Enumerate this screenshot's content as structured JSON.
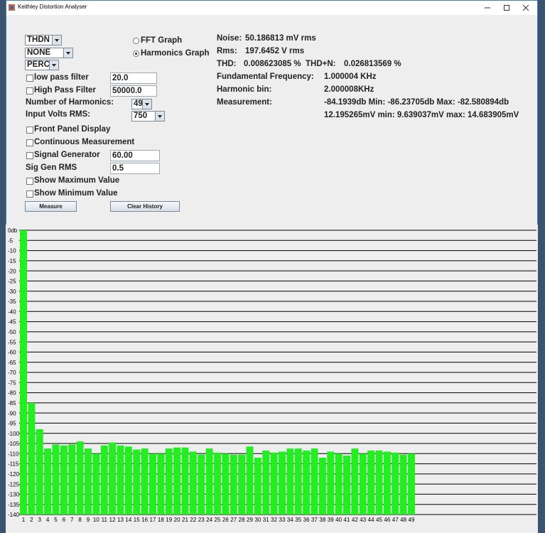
{
  "window": {
    "title": "Keithley Distortion Analyser"
  },
  "controls": {
    "mode": "THDN",
    "filter": "NONE",
    "units": "PERC",
    "low_pass_filter": {
      "label": "low pass filter",
      "value": "20.0"
    },
    "high_pass_filter": {
      "label": "High Pass Filter",
      "value": "50000.0"
    },
    "number_of_harmonics": {
      "label": "Number of Harmonics:",
      "value": "49"
    },
    "input_volts_rms": {
      "label": "Input Volts RMS:",
      "value": "750"
    },
    "front_panel_display": "Front Panel Display",
    "continuous_measurement": "Continuous Measurement",
    "signal_generator": {
      "label": "Signal Generator",
      "value": "60.00"
    },
    "sig_gen_rms": {
      "label": "Sig Gen RMS",
      "value": "0.5"
    },
    "show_maximum": "Show Maximum Value",
    "show_minimum": "Show Minimum Value",
    "measure_button": "Measure",
    "clear_history_button": "Clear History",
    "fft_graph": "FFT Graph",
    "harmonics_graph": "Harmonics Graph"
  },
  "info": {
    "noise": {
      "label": "Noise:",
      "value": "50.186813 mV rms"
    },
    "rms": {
      "label": "Rms:",
      "value": "197.6452 V rms"
    },
    "thd": {
      "label": "THD:",
      "value": "0.008623085 %"
    },
    "thdn": {
      "label": "THD+N:",
      "value": "0.026813569 %"
    },
    "fundamental_frequency": {
      "label": "Fundamental Frequency:",
      "value": "1.000004 KHz"
    },
    "harmonic_bin": {
      "label": "Harmonic bin:",
      "value": "2.000008KHz"
    },
    "measurement": {
      "label": "Measurement:",
      "value": "-84.1939db Min: -86.23705db Max: -82.580894db",
      "value2": "12.195265mV min: 9.639037mV max: 14.683905mV"
    }
  },
  "chart_data": {
    "type": "bar",
    "categories": [
      "1",
      "2",
      "3",
      "4",
      "5",
      "6",
      "7",
      "8",
      "9",
      "10",
      "11",
      "12",
      "13",
      "14",
      "15",
      "16",
      "17",
      "18",
      "19",
      "20",
      "21",
      "22",
      "23",
      "24",
      "25",
      "26",
      "27",
      "28",
      "29",
      "30",
      "31",
      "32",
      "33",
      "34",
      "35",
      "36",
      "37",
      "38",
      "39",
      "40",
      "41",
      "42",
      "43",
      "44",
      "45",
      "46",
      "47",
      "48",
      "49"
    ],
    "values": [
      0,
      -85,
      -98,
      -107.5,
      -105.5,
      -106,
      -105.5,
      -104,
      -107.5,
      -110,
      -106,
      -104.5,
      -106,
      -106.5,
      -108,
      -107.5,
      -110,
      -110,
      -107.5,
      -107,
      -107,
      -109,
      -110.5,
      -107.5,
      -109.5,
      -110,
      -110.5,
      -110.5,
      -106.5,
      -112,
      -108.5,
      -109.5,
      -109,
      -107.5,
      -107.5,
      -108.5,
      -107.5,
      -112,
      -109,
      -110,
      -111,
      -107.5,
      -110,
      -108.5,
      -108.5,
      -109,
      -109.5,
      -110.5,
      -110
    ],
    "color": "#22ee22",
    "ylim": [
      -140,
      0
    ],
    "yticks": [
      {
        "value": 0,
        "label": "0db"
      },
      -5,
      -10,
      -15,
      -20,
      -25,
      -30,
      -35,
      -40,
      -45,
      -50,
      -55,
      -60,
      -65,
      -70,
      -75,
      -80,
      -85,
      -90,
      -95,
      -100,
      -105,
      -110,
      -115,
      -120,
      -125,
      -130,
      -135,
      -140
    ],
    "grid": true
  }
}
